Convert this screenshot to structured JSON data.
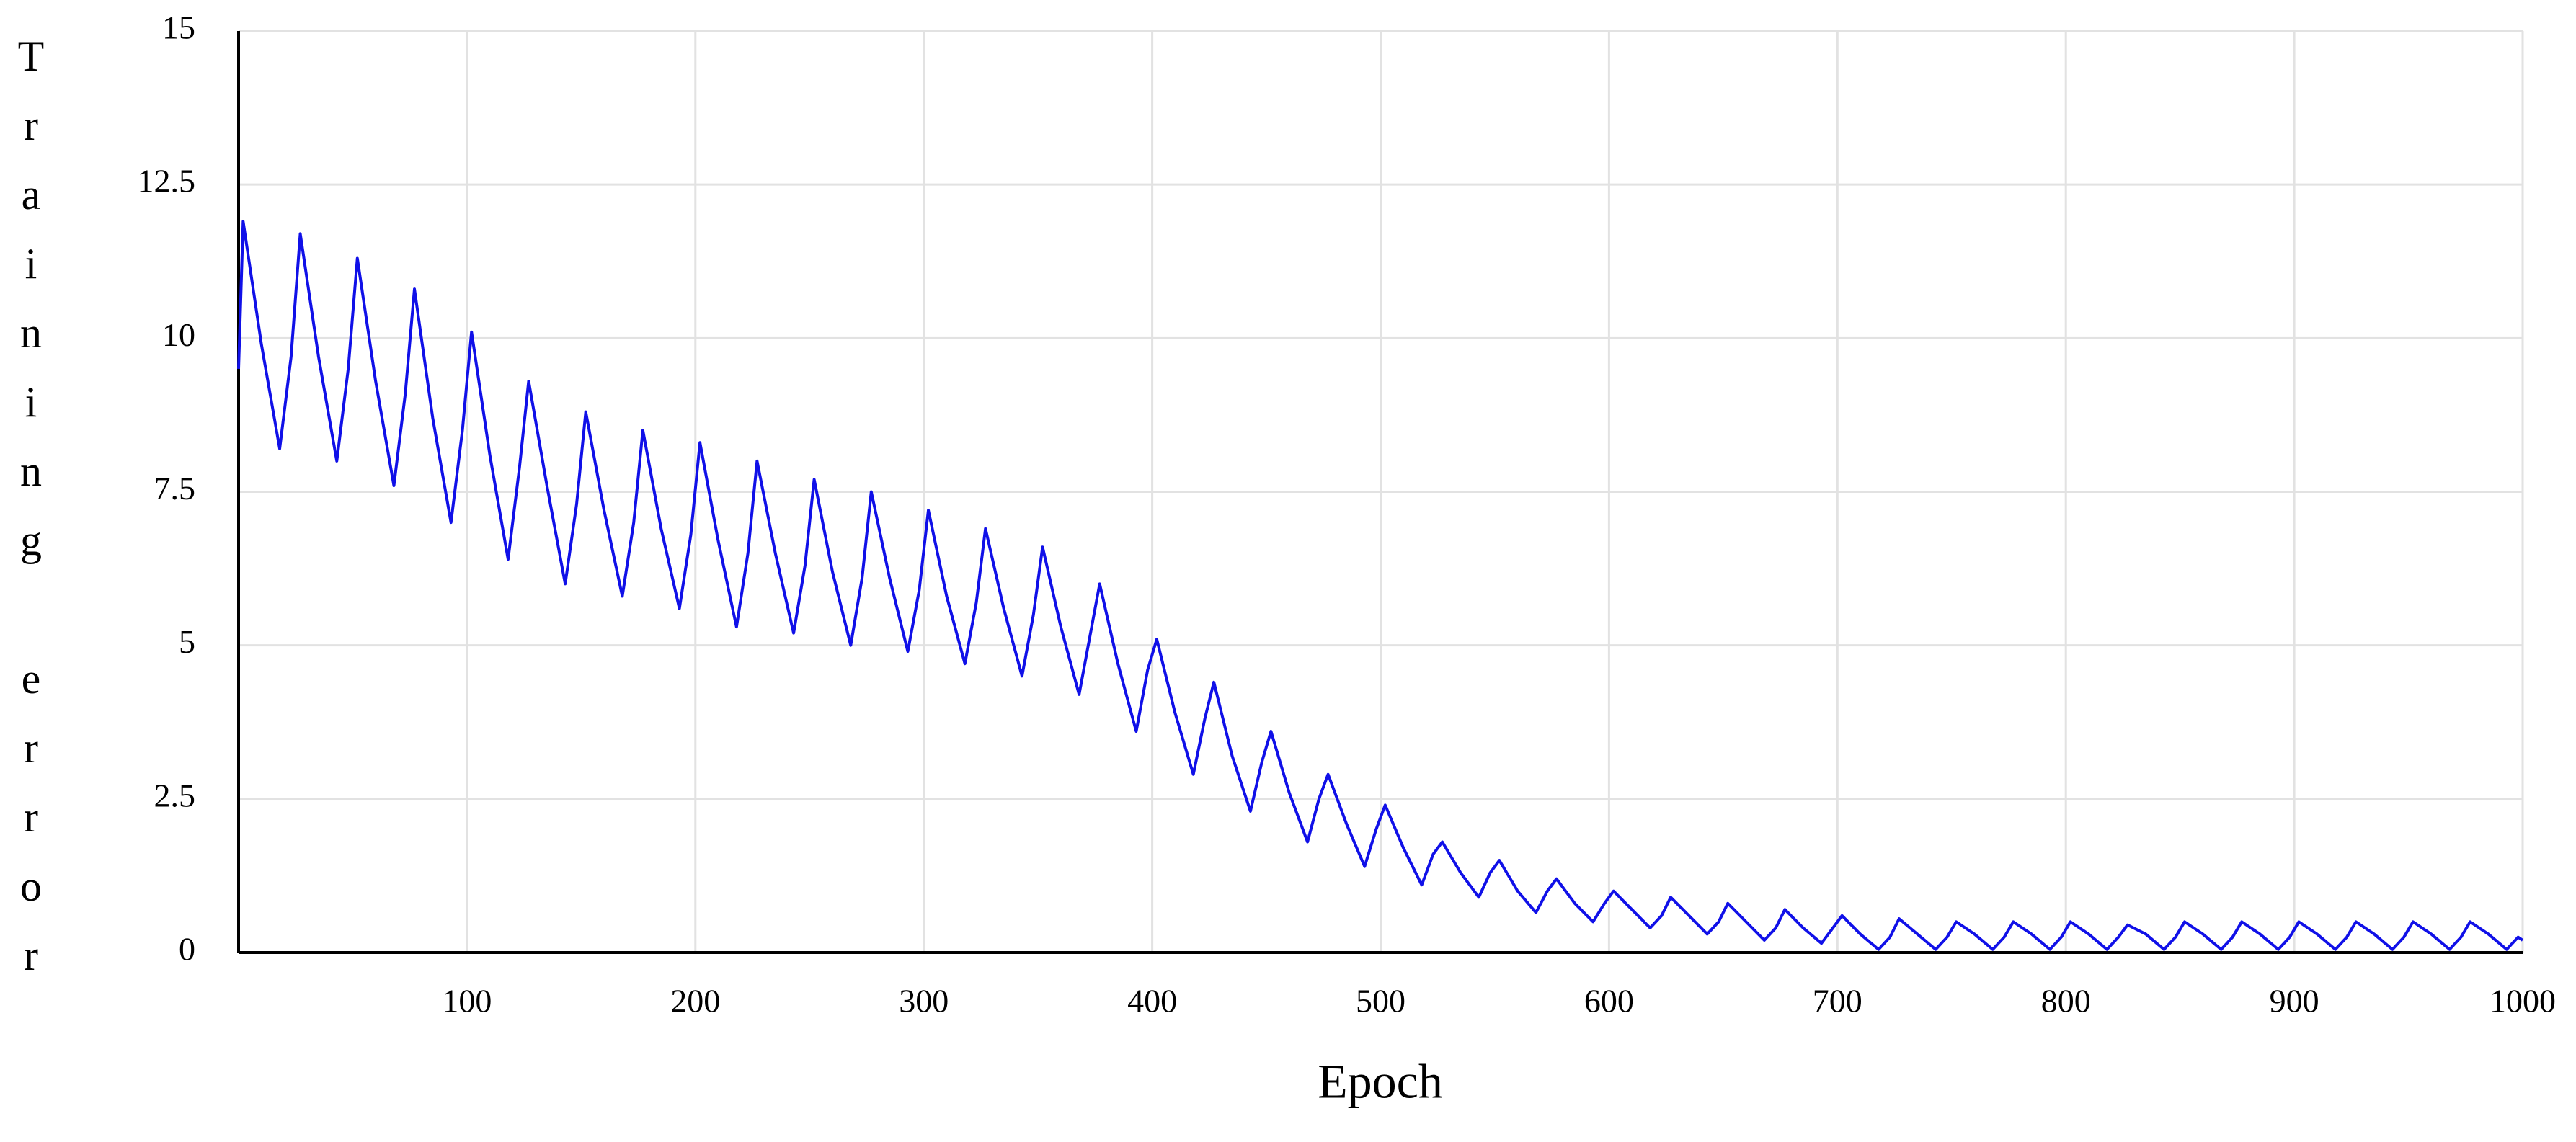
{
  "chart_data": {
    "type": "line",
    "xlabel": "Epoch",
    "ylabel": "Training error",
    "x": [
      0,
      2,
      10,
      18,
      23,
      27,
      35,
      43,
      48,
      52,
      60,
      68,
      73,
      77,
      85,
      93,
      98,
      102,
      110,
      118,
      123,
      127,
      135,
      143,
      148,
      152,
      160,
      168,
      173,
      177,
      185,
      193,
      198,
      202,
      210,
      218,
      223,
      227,
      235,
      243,
      248,
      252,
      260,
      268,
      273,
      277,
      285,
      293,
      298,
      302,
      310,
      318,
      323,
      327,
      335,
      343,
      348,
      352,
      360,
      368,
      373,
      377,
      385,
      393,
      398,
      402,
      410,
      418,
      423,
      427,
      435,
      443,
      448,
      452,
      460,
      468,
      473,
      477,
      485,
      493,
      498,
      502,
      510,
      518,
      523,
      527,
      535,
      543,
      548,
      552,
      560,
      568,
      573,
      577,
      585,
      593,
      598,
      602,
      610,
      618,
      623,
      627,
      635,
      643,
      648,
      652,
      660,
      668,
      673,
      677,
      685,
      693,
      698,
      702,
      710,
      718,
      723,
      727,
      735,
      743,
      748,
      752,
      760,
      768,
      773,
      777,
      785,
      793,
      798,
      802,
      810,
      818,
      823,
      827,
      835,
      843,
      848,
      852,
      860,
      868,
      873,
      877,
      885,
      893,
      898,
      902,
      910,
      918,
      923,
      927,
      935,
      943,
      948,
      952,
      960,
      968,
      973,
      977,
      985,
      993,
      998,
      1000
    ],
    "series": [
      {
        "name": "Training error",
        "color": "#1010e8",
        "values": [
          9.5,
          11.9,
          9.9,
          8.2,
          9.7,
          11.7,
          9.7,
          8.0,
          9.5,
          11.3,
          9.3,
          7.6,
          9.1,
          10.8,
          8.7,
          7.0,
          8.5,
          10.1,
          8.1,
          6.4,
          7.9,
          9.3,
          7.6,
          6.0,
          7.3,
          8.8,
          7.2,
          5.8,
          7.0,
          8.5,
          6.9,
          5.6,
          6.8,
          8.3,
          6.7,
          5.3,
          6.5,
          8.0,
          6.5,
          5.2,
          6.3,
          7.7,
          6.2,
          5.0,
          6.1,
          7.5,
          6.1,
          4.9,
          5.9,
          7.2,
          5.8,
          4.7,
          5.7,
          6.9,
          5.6,
          4.5,
          5.5,
          6.6,
          5.3,
          4.2,
          5.2,
          6.0,
          4.7,
          3.6,
          4.6,
          5.1,
          3.9,
          2.9,
          3.8,
          4.4,
          3.2,
          2.3,
          3.1,
          3.6,
          2.6,
          1.8,
          2.5,
          2.9,
          2.1,
          1.4,
          2.0,
          2.4,
          1.7,
          1.1,
          1.6,
          1.8,
          1.3,
          0.9,
          1.3,
          1.5,
          1.0,
          0.65,
          1.0,
          1.2,
          0.8,
          0.5,
          0.8,
          1.0,
          0.7,
          0.4,
          0.6,
          0.9,
          0.6,
          0.3,
          0.5,
          0.8,
          0.5,
          0.2,
          0.4,
          0.7,
          0.4,
          0.15,
          0.4,
          0.6,
          0.3,
          0.05,
          0.25,
          0.55,
          0.3,
          0.05,
          0.25,
          0.5,
          0.3,
          0.05,
          0.25,
          0.5,
          0.3,
          0.05,
          0.25,
          0.5,
          0.3,
          0.05,
          0.25,
          0.45,
          0.3,
          0.05,
          0.25,
          0.5,
          0.3,
          0.05,
          0.25,
          0.5,
          0.3,
          0.05,
          0.25,
          0.5,
          0.3,
          0.05,
          0.25,
          0.5,
          0.3,
          0.05,
          0.25,
          0.5,
          0.3,
          0.05,
          0.25,
          0.5,
          0.3,
          0.05,
          0.25,
          0.2
        ]
      }
    ],
    "xlim": [
      0,
      1000
    ],
    "xticks": [
      100,
      200,
      300,
      400,
      500,
      600,
      700,
      800,
      900,
      1000
    ],
    "ylim": [
      0,
      15
    ],
    "yticks": [
      0,
      2.5,
      5,
      7.5,
      10,
      12.5,
      15
    ],
    "grid": true
  }
}
